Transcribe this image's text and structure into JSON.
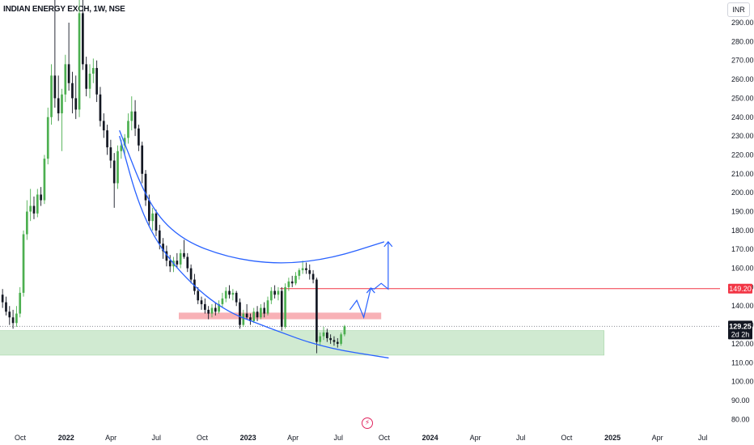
{
  "header": {
    "title": "INDIAN ENERGY EXCH, 1W, NSE",
    "currency": "INR"
  },
  "colors": {
    "up": "#4caf50",
    "down": "#131722",
    "arc": "#2962ff",
    "resistance_line": "#f23645",
    "support_zone": "#c8e6c9",
    "supply_zone": "#f7a9ae"
  },
  "chart_data": {
    "type": "candlestick",
    "title": "INDIAN ENERGY EXCH, 1W, NSE",
    "ylim": [
      75,
      302
    ],
    "y_ticks": [
      80,
      90,
      100,
      110,
      120,
      130,
      140,
      150,
      160,
      170,
      180,
      190,
      200,
      210,
      220,
      230,
      240,
      250,
      260,
      270,
      280,
      290
    ],
    "x_labels": [
      "Oct",
      "2022",
      "Apr",
      "Jul",
      "Oct",
      "2023",
      "Apr",
      "Jul",
      "Oct",
      "2024",
      "Apr",
      "Jul",
      "Oct",
      "2025",
      "Apr",
      "Jul"
    ],
    "x_range": [
      "2021-08-23",
      "2025-07-21"
    ],
    "x_ticks": [
      "2021-10-01",
      "2022-01-01",
      "2022-04-01",
      "2022-07-01",
      "2022-10-01",
      "2023-01-01",
      "2023-04-01",
      "2023-07-01",
      "2023-10-01",
      "2024-01-01",
      "2024-04-01",
      "2024-07-01",
      "2024-10-01",
      "2025-01-01",
      "2025-04-01",
      "2025-07-01"
    ],
    "current_price": {
      "value": 129.25,
      "label": "129.25",
      "countdown": "2d 2h"
    },
    "resistance": {
      "value": 149.2,
      "label": "149.20",
      "from": "2023-03-06",
      "to": "2025-07-21"
    },
    "support_zone": {
      "low": 114,
      "high": 127,
      "from": "2021-08-23",
      "to": "2024-12-15"
    },
    "supply_zone": {
      "low": 133,
      "high": 136.5,
      "from": "2022-08-15",
      "to": "2023-09-25"
    },
    "arcs": [
      {
        "name": "lower-arc",
        "points": [
          [
            "2022-04-18",
            230
          ],
          [
            "2022-05-30",
            190
          ],
          [
            "2022-07-25",
            164
          ],
          [
            "2022-11-01",
            139
          ],
          [
            "2023-02-15",
            128
          ],
          [
            "2023-06-01",
            118
          ],
          [
            "2023-10-10",
            112.5
          ]
        ]
      },
      {
        "name": "upper-arc",
        "points": [
          [
            "2022-04-18",
            233
          ],
          [
            "2022-06-15",
            194
          ],
          [
            "2022-08-15",
            176
          ],
          [
            "2022-11-15",
            166
          ],
          [
            "2023-03-01",
            162
          ],
          [
            "2023-06-15",
            165
          ],
          [
            "2023-10-01",
            174
          ]
        ]
      }
    ],
    "projection_arrow": [
      [
        "2023-07-24",
        138
      ],
      [
        "2023-08-07",
        143
      ],
      [
        "2023-08-21",
        134
      ],
      [
        "2023-09-04",
        149.5
      ],
      [
        "2023-09-11",
        149
      ],
      [
        "2023-09-25",
        152
      ],
      [
        "2023-10-09",
        149
      ],
      [
        "2023-10-09",
        174
      ]
    ],
    "candles": [
      [
        "2021-08-23",
        146,
        149,
        139,
        142
      ],
      [
        "2021-08-30",
        142,
        145,
        135,
        137
      ],
      [
        "2021-09-06",
        137,
        140,
        130,
        134
      ],
      [
        "2021-09-13",
        134,
        138,
        128,
        131
      ],
      [
        "2021-09-20",
        131,
        140,
        129,
        136
      ],
      [
        "2021-09-27",
        136,
        150,
        134,
        147
      ],
      [
        "2021-10-04",
        147,
        180,
        145,
        178
      ],
      [
        "2021-10-11",
        178,
        196,
        175,
        190
      ],
      [
        "2021-10-18",
        190,
        202,
        185,
        193
      ],
      [
        "2021-10-25",
        193,
        198,
        186,
        189
      ],
      [
        "2021-11-01",
        189,
        202,
        187,
        199
      ],
      [
        "2021-11-08",
        199,
        203,
        193,
        196
      ],
      [
        "2021-11-15",
        196,
        220,
        194,
        218
      ],
      [
        "2021-11-22",
        218,
        245,
        215,
        240
      ],
      [
        "2021-11-29",
        240,
        268,
        236,
        262
      ],
      [
        "2021-12-06",
        262,
        302,
        245,
        250
      ],
      [
        "2021-12-13",
        250,
        262,
        238,
        242
      ],
      [
        "2021-12-20",
        242,
        255,
        222,
        252
      ],
      [
        "2021-12-27",
        252,
        273,
        248,
        268
      ],
      [
        "2022-01-03",
        268,
        290,
        254,
        258
      ],
      [
        "2022-01-10",
        258,
        264,
        242,
        250
      ],
      [
        "2022-01-17",
        250,
        262,
        239,
        244
      ],
      [
        "2022-01-24",
        244,
        302,
        240,
        295
      ],
      [
        "2022-01-31",
        295,
        302,
        265,
        268
      ],
      [
        "2022-02-07",
        268,
        272,
        251,
        255
      ],
      [
        "2022-02-14",
        255,
        268,
        250,
        263
      ],
      [
        "2022-02-21",
        263,
        271,
        258,
        266
      ],
      [
        "2022-02-28",
        266,
        270,
        248,
        252
      ],
      [
        "2022-03-07",
        252,
        256,
        235,
        238
      ],
      [
        "2022-03-14",
        238,
        242,
        229,
        233
      ],
      [
        "2022-03-21",
        233,
        236,
        220,
        224
      ],
      [
        "2022-03-28",
        224,
        228,
        213,
        217
      ],
      [
        "2022-04-04",
        217,
        221,
        192,
        205
      ],
      [
        "2022-04-11",
        205,
        225,
        202,
        222
      ],
      [
        "2022-04-18",
        222,
        228,
        218,
        225
      ],
      [
        "2022-04-25",
        225,
        231,
        220,
        229
      ],
      [
        "2022-05-02",
        229,
        242,
        226,
        238
      ],
      [
        "2022-05-09",
        238,
        251,
        233,
        243
      ],
      [
        "2022-05-16",
        243,
        249,
        230,
        234
      ],
      [
        "2022-05-23",
        234,
        236,
        222,
        225
      ],
      [
        "2022-05-30",
        225,
        227,
        205,
        210
      ],
      [
        "2022-06-06",
        210,
        212,
        193,
        196
      ],
      [
        "2022-06-13",
        196,
        199,
        182,
        185
      ],
      [
        "2022-06-20",
        185,
        192,
        180,
        189
      ],
      [
        "2022-06-27",
        189,
        191,
        177,
        180
      ],
      [
        "2022-07-04",
        180,
        183,
        170,
        173
      ],
      [
        "2022-07-11",
        173,
        176,
        165,
        169
      ],
      [
        "2022-07-18",
        169,
        172,
        161,
        164
      ],
      [
        "2022-07-25",
        164,
        167,
        158,
        161
      ],
      [
        "2022-08-01",
        161,
        166,
        158,
        164
      ],
      [
        "2022-08-08",
        164,
        168,
        160,
        162
      ],
      [
        "2022-08-15",
        162,
        170,
        160,
        168
      ],
      [
        "2022-08-22",
        168,
        175,
        165,
        166
      ],
      [
        "2022-08-29",
        166,
        168,
        158,
        160
      ],
      [
        "2022-09-05",
        160,
        162,
        152,
        154
      ],
      [
        "2022-09-12",
        154,
        157,
        146,
        148
      ],
      [
        "2022-09-19",
        148,
        150,
        141,
        143
      ],
      [
        "2022-09-26",
        143,
        145,
        138,
        141
      ],
      [
        "2022-10-03",
        141,
        144,
        136,
        138
      ],
      [
        "2022-10-10",
        138,
        140,
        133,
        136
      ],
      [
        "2022-10-17",
        136,
        141,
        134,
        139
      ],
      [
        "2022-10-24",
        139,
        142,
        135,
        137
      ],
      [
        "2022-10-31",
        137,
        143,
        136,
        141
      ],
      [
        "2022-11-07",
        141,
        147,
        139,
        144
      ],
      [
        "2022-11-14",
        144,
        150,
        142,
        148
      ],
      [
        "2022-11-21",
        148,
        151,
        144,
        146
      ],
      [
        "2022-11-28",
        146,
        149,
        143,
        147
      ],
      [
        "2022-12-05",
        147,
        148,
        140,
        142
      ],
      [
        "2022-12-12",
        142,
        144,
        128,
        130
      ],
      [
        "2022-12-19",
        130,
        138,
        129,
        136
      ],
      [
        "2022-12-26",
        136,
        141,
        133,
        134
      ],
      [
        "2023-01-02",
        134,
        136,
        130,
        132
      ],
      [
        "2023-01-09",
        132,
        139,
        131,
        137
      ],
      [
        "2023-01-16",
        137,
        140,
        132,
        134
      ],
      [
        "2023-01-23",
        134,
        141,
        133,
        139
      ],
      [
        "2023-01-30",
        139,
        142,
        134,
        136
      ],
      [
        "2023-02-06",
        136,
        145,
        135,
        143
      ],
      [
        "2023-02-13",
        143,
        150,
        141,
        148
      ],
      [
        "2023-02-20",
        148,
        151,
        144,
        146
      ],
      [
        "2023-02-27",
        146,
        150,
        143,
        148
      ],
      [
        "2023-03-06",
        148,
        150,
        127,
        129
      ],
      [
        "2023-03-13",
        129,
        152,
        128,
        150
      ],
      [
        "2023-03-20",
        150,
        155,
        148,
        153
      ],
      [
        "2023-03-27",
        153,
        156,
        150,
        152
      ],
      [
        "2023-04-03",
        152,
        158,
        151,
        156
      ],
      [
        "2023-04-10",
        156,
        160,
        154,
        159
      ],
      [
        "2023-04-17",
        159,
        164,
        157,
        160
      ],
      [
        "2023-04-24",
        160,
        163,
        157,
        159
      ],
      [
        "2023-05-01",
        159,
        162,
        154,
        157
      ],
      [
        "2023-05-08",
        157,
        159,
        152,
        154
      ],
      [
        "2023-05-15",
        154,
        155,
        115,
        121
      ],
      [
        "2023-05-22",
        121,
        126,
        119,
        124
      ],
      [
        "2023-05-29",
        124,
        129,
        122,
        126
      ],
      [
        "2023-06-05",
        126,
        128,
        121,
        123
      ],
      [
        "2023-06-12",
        123,
        125,
        120,
        122
      ],
      [
        "2023-06-19",
        122,
        124,
        119,
        121
      ],
      [
        "2023-06-26",
        121,
        123,
        118,
        120
      ],
      [
        "2023-07-03",
        120,
        126,
        119,
        125
      ],
      [
        "2023-07-10",
        125,
        130,
        124,
        129.25
      ]
    ]
  }
}
